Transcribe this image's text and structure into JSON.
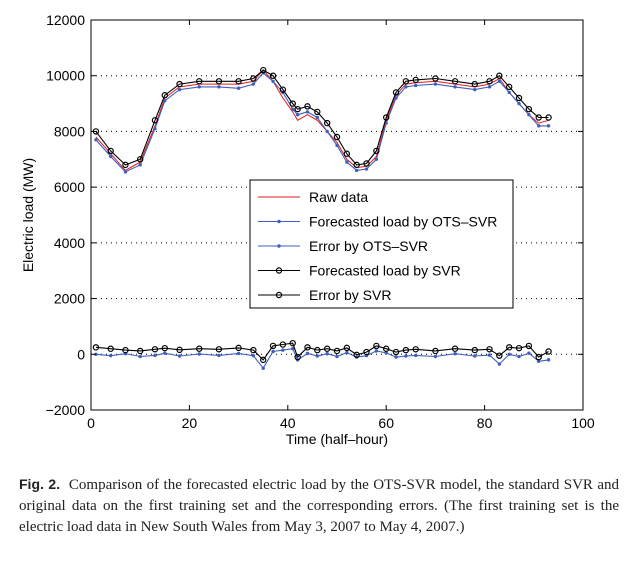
{
  "chart_data": {
    "type": "line",
    "xlabel": "Time (half–hour)",
    "ylabel": "Electric load (MW)",
    "xlim": [
      0,
      100
    ],
    "ylim": [
      -2000,
      12000
    ],
    "xticks": [
      0,
      20,
      40,
      60,
      80,
      100
    ],
    "yticks": [
      -2000,
      0,
      2000,
      4000,
      6000,
      8000,
      10000,
      12000
    ],
    "xtick_labels": [
      "0",
      "20",
      "40",
      "60",
      "80",
      "100"
    ],
    "ytick_labels": [
      "−2000",
      "0",
      "2000",
      "4000",
      "6000",
      "8000",
      "10000",
      "12000"
    ],
    "grid": "horizontal dotted",
    "legend_position": "center-right",
    "colors": {
      "raw": "#e41a1c",
      "ots": "#3f5fbf",
      "svr": "#000000"
    },
    "series": [
      {
        "name": "Raw data",
        "color": "#e41a1c",
        "marker": "none",
        "x": [
          1,
          4,
          7,
          10,
          13,
          15,
          18,
          22,
          26,
          30,
          33,
          35,
          37,
          39,
          41,
          42,
          44,
          46,
          48,
          50,
          52,
          54,
          56,
          58,
          60,
          62,
          64,
          66,
          70,
          74,
          78,
          81,
          83,
          85,
          87,
          89,
          91,
          93
        ],
        "y": [
          7800,
          7200,
          6600,
          6900,
          8200,
          9200,
          9600,
          9700,
          9700,
          9700,
          9800,
          10200,
          9800,
          9200,
          8700,
          8400,
          8600,
          8400,
          8000,
          7600,
          7000,
          6700,
          6750,
          7100,
          8400,
          9300,
          9700,
          9750,
          9800,
          9700,
          9600,
          9700,
          9900,
          9400,
          9000,
          8600,
          8300,
          8400
        ]
      },
      {
        "name": "Forecasted load by OTS–SVR",
        "color": "#3f5fbf",
        "marker": "dot",
        "x": [
          1,
          4,
          7,
          10,
          13,
          15,
          18,
          22,
          26,
          30,
          33,
          35,
          37,
          39,
          41,
          42,
          44,
          46,
          48,
          50,
          52,
          54,
          56,
          58,
          60,
          62,
          64,
          66,
          70,
          74,
          78,
          81,
          83,
          85,
          87,
          89,
          91,
          93
        ],
        "y": [
          7700,
          7100,
          6550,
          6800,
          8100,
          9100,
          9500,
          9600,
          9600,
          9550,
          9700,
          10100,
          9800,
          9400,
          8800,
          8600,
          8700,
          8500,
          8000,
          7500,
          6900,
          6600,
          6650,
          7000,
          8300,
          9200,
          9600,
          9650,
          9700,
          9600,
          9500,
          9600,
          9800,
          9400,
          9000,
          8600,
          8200,
          8200
        ]
      },
      {
        "name": "Error by OTS–SVR",
        "color": "#3f5fbf",
        "marker": "dot",
        "x": [
          1,
          4,
          7,
          10,
          13,
          15,
          18,
          22,
          26,
          30,
          33,
          35,
          37,
          39,
          41,
          42,
          44,
          46,
          48,
          50,
          52,
          54,
          56,
          58,
          60,
          62,
          64,
          66,
          70,
          74,
          78,
          81,
          83,
          85,
          87,
          89,
          91,
          93
        ],
        "y": [
          0,
          -50,
          20,
          -80,
          -40,
          40,
          -60,
          10,
          -40,
          30,
          -50,
          -500,
          100,
          150,
          200,
          -200,
          30,
          -60,
          20,
          -80,
          60,
          -100,
          -50,
          120,
          50,
          -100,
          -60,
          -40,
          -80,
          20,
          -60,
          -30,
          -350,
          0,
          -80,
          40,
          -250,
          -200
        ]
      },
      {
        "name": "Forecasted load by SVR",
        "color": "#000000",
        "marker": "circle",
        "x": [
          1,
          4,
          7,
          10,
          13,
          15,
          18,
          22,
          26,
          30,
          33,
          35,
          37,
          39,
          41,
          42,
          44,
          46,
          48,
          50,
          52,
          54,
          56,
          58,
          60,
          62,
          64,
          66,
          70,
          74,
          78,
          81,
          83,
          85,
          87,
          89,
          91,
          93
        ],
        "y": [
          8000,
          7300,
          6800,
          7000,
          8400,
          9300,
          9700,
          9800,
          9800,
          9800,
          9900,
          10200,
          10000,
          9500,
          9000,
          8800,
          8900,
          8700,
          8300,
          7800,
          7200,
          6800,
          6850,
          7300,
          8500,
          9400,
          9800,
          9850,
          9900,
          9800,
          9700,
          9800,
          10000,
          9600,
          9200,
          8800,
          8500,
          8500
        ]
      },
      {
        "name": "Error by SVR",
        "color": "#000000",
        "marker": "circle",
        "x": [
          1,
          4,
          7,
          10,
          13,
          15,
          18,
          22,
          26,
          30,
          33,
          35,
          37,
          39,
          41,
          42,
          44,
          46,
          48,
          50,
          52,
          54,
          56,
          58,
          60,
          62,
          64,
          66,
          70,
          74,
          78,
          81,
          83,
          85,
          87,
          89,
          91,
          93
        ],
        "y": [
          250,
          200,
          150,
          120,
          180,
          220,
          160,
          200,
          180,
          230,
          150,
          -200,
          300,
          350,
          400,
          -100,
          250,
          150,
          200,
          120,
          230,
          -20,
          80,
          300,
          200,
          80,
          150,
          180,
          120,
          200,
          150,
          180,
          -50,
          250,
          220,
          300,
          -100,
          100
        ]
      }
    ]
  },
  "caption": {
    "label": "Fig. 2.",
    "text": "Comparison of the forecasted electric load by the OTS-SVR model, the standard SVR and original data on the first training set and the corresponding errors. (The first training set is the electric load data in New South Wales from May 3, 2007 to May 4, 2007.)"
  }
}
